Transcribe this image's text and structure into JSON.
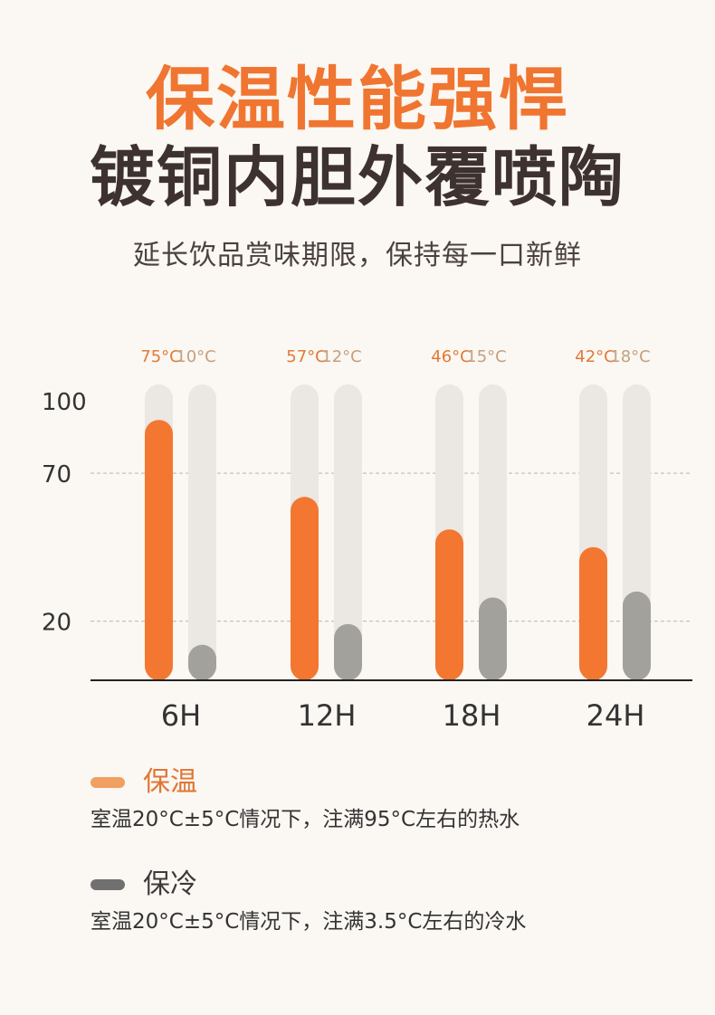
{
  "header": {
    "title_line1": "保温性能强悍",
    "title_line2": "镀铜内胆外覆喷陶",
    "subtitle": "延长饮品赏味期限，保持每一口新鲜"
  },
  "colors": {
    "hot": "#f37730",
    "cold": "#a3a19b",
    "track": "#ebe7e3",
    "hot_label": "#e07a38",
    "cold_label": "#c4a080",
    "hot_legend": "#f0a060",
    "cold_legend": "#707070",
    "hot_legend_text": "#e07533",
    "cold_legend_text": "#3d3a3a"
  },
  "chart_data": {
    "type": "bar",
    "categories": [
      "6H",
      "12H",
      "18H",
      "24H"
    ],
    "series": [
      {
        "name": "保温",
        "values": [
          88,
          62,
          51,
          45
        ],
        "labels": [
          "75°C",
          "57°C",
          "46°C",
          "42°C"
        ]
      },
      {
        "name": "保冷",
        "values": [
          12,
          19,
          28,
          30
        ],
        "labels": [
          "10°C",
          "12°C",
          "15°C",
          "18°C"
        ]
      }
    ],
    "track_max": 100,
    "yticks": [
      {
        "label": "100",
        "value": 100,
        "grid": false
      },
      {
        "label": "70",
        "value": 70,
        "grid": true
      },
      {
        "label": "20",
        "value": 20,
        "grid": true
      }
    ],
    "ylim": [
      0,
      100
    ],
    "grid": true,
    "legend_position": "bottom-left"
  },
  "legend": {
    "hot": {
      "label": "保温",
      "desc": "室温20°C±5°C情况下，注满95°C左右的热水"
    },
    "cold": {
      "label": "保冷",
      "desc": "室温20°C±5°C情况下，注满3.5°C左右的冷水"
    }
  }
}
